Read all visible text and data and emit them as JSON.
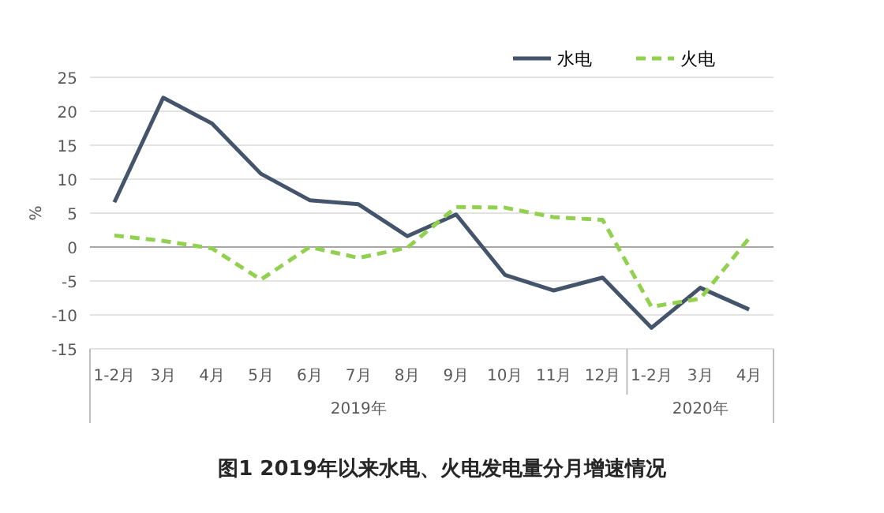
{
  "chart_data": {
    "type": "line",
    "title": "图1 2019年以来水电、火电发电量分月增速情况",
    "ylabel": "%",
    "categories": [
      "1-2月",
      "3月",
      "4月",
      "5月",
      "6月",
      "7月",
      "8月",
      "9月",
      "10月",
      "11月",
      "12月",
      "1-2月",
      "3月",
      "4月"
    ],
    "series": [
      {
        "name": "水电",
        "color": "#44546a",
        "line_style": "solid",
        "values": [
          6.6,
          22,
          18.2,
          10.8,
          6.9,
          6.3,
          1.6,
          4.8,
          -4.1,
          -6.4,
          -4.5,
          -11.9,
          -6.0,
          -9.2
        ]
      },
      {
        "name": "火电",
        "color": "#92d050",
        "line_style": "dashed",
        "values": [
          1.7,
          0.9,
          -0.2,
          -4.8,
          0,
          -1.6,
          -0.1,
          5.9,
          5.8,
          4.4,
          4.0,
          -8.8,
          -7.6,
          1.3
        ]
      }
    ],
    "ylim": [
      -15,
      25
    ],
    "yticks": [
      -15,
      -10,
      -5,
      0,
      5,
      10,
      15,
      20,
      25
    ],
    "grid": "y",
    "legend": "top right",
    "marker": "none",
    "annotations": [
      "2019年",
      "2020年"
    ]
  }
}
